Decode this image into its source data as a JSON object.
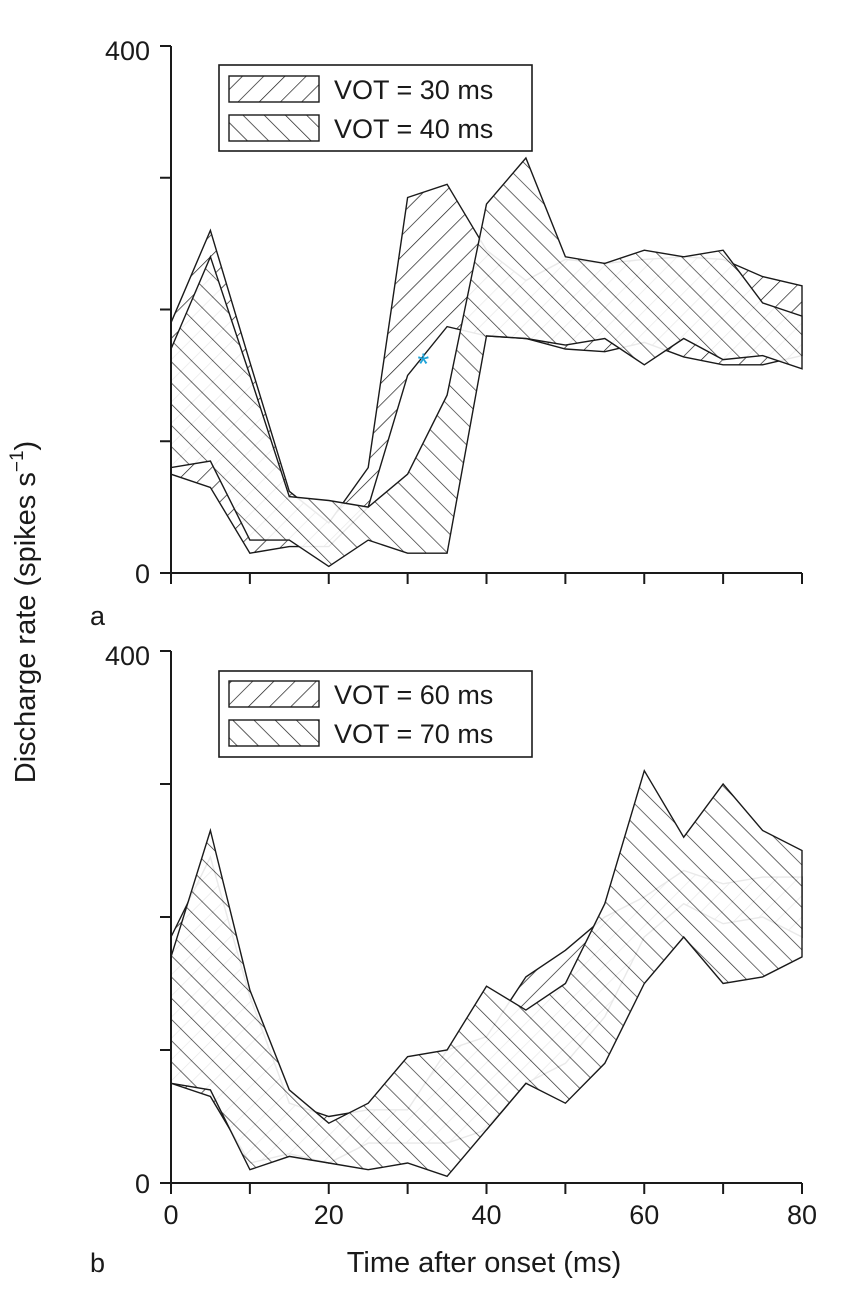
{
  "figure": {
    "ylabel_main": "Discharge rate (spikes s",
    "ylabel_sup": "−1",
    "ylabel_close": ")",
    "colors": {
      "ink": "#1a1a1a",
      "accent": "#1fa3d8",
      "background": "#ffffff"
    }
  },
  "chart_data": [
    {
      "type": "area",
      "panel_label": "a",
      "title": "",
      "xlabel": "",
      "ylabel": "Discharge rate (spikes s−1)",
      "xlim": [
        0,
        80
      ],
      "ylim": [
        0,
        400
      ],
      "y_ticks": [
        0,
        100,
        200,
        300,
        400
      ],
      "y_tick_labels": [
        "0",
        "400"
      ],
      "x_ticks": [
        0,
        10,
        20,
        30,
        40,
        50,
        60,
        70,
        80
      ],
      "x_tick_labels": [],
      "legend": [
        "VOT = 30 ms",
        "VOT = 40 ms"
      ],
      "annotation": {
        "text": "*",
        "x": 32,
        "y": 160
      },
      "series": [
        {
          "name": "VOT = 30 ms",
          "hatch": "forward",
          "x": [
            0,
            5,
            10,
            15,
            20,
            25,
            30,
            35,
            40,
            45,
            50,
            55,
            60,
            65,
            70,
            75,
            80
          ],
          "upper": [
            190,
            260,
            160,
            62,
            38,
            80,
            285,
            295,
            245,
            222,
            238,
            235,
            238,
            240,
            238,
            225,
            218
          ],
          "lower": [
            75,
            65,
            15,
            20,
            20,
            50,
            150,
            187,
            180,
            178,
            170,
            168,
            175,
            164,
            158,
            158,
            165
          ]
        },
        {
          "name": "VOT = 40 ms",
          "hatch": "backward",
          "x": [
            0,
            5,
            10,
            15,
            20,
            25,
            30,
            35,
            40,
            45,
            50,
            55,
            60,
            65,
            70,
            75,
            80
          ],
          "upper": [
            170,
            240,
            150,
            58,
            55,
            50,
            75,
            135,
            280,
            315,
            240,
            235,
            245,
            240,
            245,
            205,
            195
          ],
          "lower": [
            80,
            85,
            25,
            25,
            5,
            25,
            15,
            15,
            180,
            178,
            173,
            178,
            158,
            178,
            162,
            165,
            155
          ]
        }
      ]
    },
    {
      "type": "area",
      "panel_label": "b",
      "title": "",
      "xlabel": "Time after onset (ms)",
      "ylabel": "Discharge rate (spikes s−1)",
      "xlim": [
        0,
        80
      ],
      "ylim": [
        0,
        400
      ],
      "y_ticks": [
        0,
        100,
        200,
        300,
        400
      ],
      "y_tick_labels": [
        "0",
        "400"
      ],
      "x_ticks": [
        0,
        10,
        20,
        30,
        40,
        50,
        60,
        70,
        80
      ],
      "x_tick_labels": [
        "0",
        "20",
        "40",
        "60",
        "80"
      ],
      "legend": [
        "VOT = 60 ms",
        "VOT = 70 ms"
      ],
      "series": [
        {
          "name": "VOT = 60 ms",
          "hatch": "forward",
          "x": [
            0,
            5,
            10,
            15,
            20,
            25,
            30,
            35,
            40,
            45,
            50,
            55,
            60,
            65,
            70,
            75,
            80
          ],
          "upper": [
            185,
            245,
            140,
            60,
            50,
            55,
            55,
            100,
            110,
            155,
            175,
            200,
            215,
            235,
            225,
            230,
            230
          ],
          "lower": [
            75,
            65,
            15,
            22,
            15,
            30,
            30,
            30,
            40,
            75,
            90,
            125,
            185,
            210,
            195,
            200,
            185
          ]
        },
        {
          "name": "VOT = 70 ms",
          "hatch": "backward",
          "x": [
            0,
            5,
            10,
            15,
            20,
            25,
            30,
            35,
            40,
            45,
            50,
            55,
            60,
            65,
            70,
            75,
            80
          ],
          "upper": [
            170,
            265,
            145,
            70,
            45,
            60,
            95,
            100,
            148,
            130,
            150,
            210,
            310,
            260,
            300,
            265,
            250
          ],
          "lower": [
            75,
            70,
            10,
            20,
            15,
            10,
            15,
            5,
            40,
            75,
            60,
            90,
            150,
            185,
            150,
            155,
            170
          ]
        }
      ]
    }
  ]
}
